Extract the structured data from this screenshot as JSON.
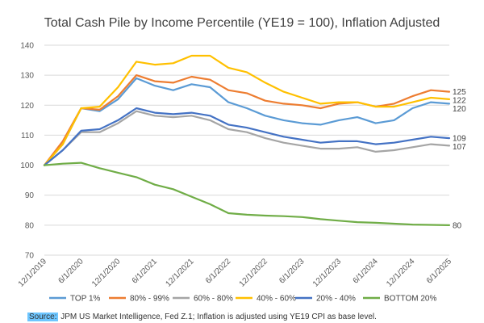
{
  "chart_data": {
    "type": "line",
    "title": "Total Cash Pile by Income Percentile (YE19 = 100), Inflation Adjusted",
    "xlabel": "",
    "ylabel": "",
    "ylim": [
      70,
      140
    ],
    "yticks": [
      70,
      80,
      90,
      100,
      110,
      120,
      130,
      140
    ],
    "grid": true,
    "legend": "bottom",
    "x": [
      "12/1/2019",
      "3/1/2020",
      "6/1/2020",
      "9/1/2020",
      "12/1/2020",
      "3/1/2021",
      "6/1/2021",
      "9/1/2021",
      "12/1/2021",
      "3/1/2022",
      "6/1/2022",
      "9/1/2022",
      "12/1/2022",
      "3/1/2023",
      "6/1/2023",
      "9/1/2023",
      "12/1/2023",
      "3/1/2024",
      "6/1/2024",
      "9/1/2024",
      "12/1/2024",
      "3/1/2025",
      "6/1/2025"
    ],
    "xticklabels": [
      "12/1/2019",
      "6/1/2020",
      "12/1/2020",
      "6/1/2021",
      "12/1/2021",
      "6/1/2022",
      "12/1/2022",
      "6/1/2023",
      "12/1/2023",
      "6/1/2024",
      "12/1/2024",
      "6/1/2025"
    ],
    "series": [
      {
        "name": "TOP 1%",
        "color": "#5b9bd5",
        "end_label": "120",
        "values": [
          100,
          107,
          119,
          118,
          122,
          129,
          126.5,
          125,
          127,
          126,
          121,
          119,
          116.5,
          115,
          114,
          113.5,
          115,
          116,
          114,
          115,
          119,
          121,
          120.5
        ]
      },
      {
        "name": "80% - 99%",
        "color": "#ed7d31",
        "end_label": "125",
        "values": [
          100,
          108,
          119,
          118.5,
          123,
          130,
          128,
          127.5,
          129.5,
          128.5,
          125,
          124,
          121.5,
          120.5,
          120,
          119,
          120.5,
          121,
          119.5,
          120.5,
          123,
          125,
          124.5
        ]
      },
      {
        "name": "60% - 80%",
        "color": "#a5a5a5",
        "end_label": "107",
        "values": [
          100,
          105,
          111,
          111,
          114,
          118,
          116.5,
          116,
          116.5,
          115,
          112,
          111,
          109,
          107.5,
          106.5,
          105.5,
          105.5,
          106,
          104.5,
          105,
          106,
          107,
          106.5
        ]
      },
      {
        "name": "40% - 60%",
        "color": "#ffc000",
        "end_label": "122",
        "values": [
          100,
          107,
          119,
          119.5,
          126,
          134.5,
          133.5,
          134,
          136.5,
          136.5,
          132.5,
          131,
          127.5,
          124.5,
          122.5,
          120.5,
          121,
          121,
          119.5,
          119.5,
          121,
          122.5,
          122
        ]
      },
      {
        "name": "20% - 40%",
        "color": "#4472c4",
        "end_label": "109",
        "values": [
          100,
          105,
          111.5,
          112,
          115,
          119,
          117.5,
          117,
          117.5,
          116.5,
          113.5,
          112.5,
          111,
          109.5,
          108.5,
          107.5,
          108,
          108,
          107,
          107.5,
          108.5,
          109.5,
          109
        ]
      },
      {
        "name": "BOTTOM 20%",
        "color": "#70ad47",
        "end_label": "80",
        "values": [
          100,
          100.5,
          100.8,
          99,
          97.5,
          96,
          93.5,
          92,
          89.5,
          87,
          84,
          83.5,
          83.2,
          83,
          82.7,
          82,
          81.5,
          81,
          80.8,
          80.5,
          80.2,
          80.1,
          80
        ]
      }
    ]
  },
  "source": {
    "label": "Source:",
    "text": " JPM US Market Intelligence, Fed Z.1; Inflation is adjusted using YE19 CPI as base level."
  }
}
